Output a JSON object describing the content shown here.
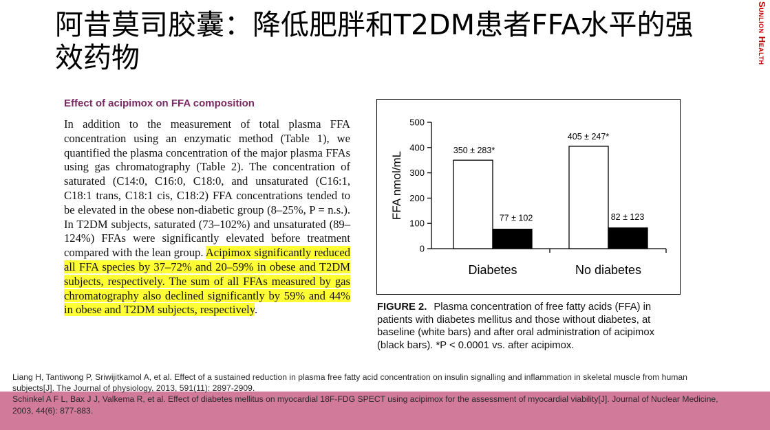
{
  "title": "阿昔莫司胶囊：降低肥胖和T2DM患者FFA水平的强效药物",
  "brand": "Sunlion Health",
  "excerpt": {
    "heading": "Effect of acipimox on FFA composition",
    "body_plain": "In addition to the measurement of total plasma FFA concentration using an enzymatic method (Table 1), we quantified the plasma concentration of the major plasma FFAs using gas chromatography (Table 2). The concentration of saturated (C14:0, C16:0, C18:0, and unsaturated (C16:1, C18:1 trans, C18:1 cis, C18:2) FFA concentrations tended to be elevated in the obese non-diabetic group (8–25%, P = n.s.). In T2DM subjects, saturated (73–102%) and unsaturated (89–124%) FFAs were significantly elevated before treatment compared with the lean group.",
    "body_highlight": "Acipimox significantly reduced all FFA species by 37–72% and 20–59% in obese and T2DM subjects, respectively. The sum of all FFAs measured by gas chromatography also declined significantly by 59% and 44% in obese and T2DM subjects, respectively",
    "body_end": "."
  },
  "chart_data": {
    "type": "bar",
    "categories": [
      "Diabetes",
      "No diabetes"
    ],
    "series": [
      {
        "values": [
          350,
          405
        ],
        "errors": [
          283,
          247
        ],
        "color": "#ffffff",
        "labels": [
          "350 ± 283*",
          "405 ± 247*"
        ]
      },
      {
        "values": [
          77,
          82
        ],
        "errors": [
          102,
          123
        ],
        "color": "#000000",
        "labels": [
          "77 ± 102",
          "82 ± 123"
        ]
      }
    ],
    "ylabel": "FFA nmol/mL",
    "ylim": [
      0,
      500
    ],
    "yticks": [
      0,
      100,
      200,
      300,
      400,
      500
    ],
    "grid": false
  },
  "caption": {
    "label": "FIGURE 2.",
    "text": "Plasma concentration of free fatty acids (FFA) in patients with diabetes mellitus and those without diabetes, at baseline (white bars) and after oral administration of acipimox (black bars). *P < 0.0001 vs. after acipimox."
  },
  "references": [
    "Liang H, Tantiwong P, Sriwijitkamol A, et al. Effect of a sustained reduction in plasma free fatty acid concentration on insulin signalling and inflammation in skeletal muscle from human subjects[J]. The Journal of physiology, 2013, 591(11): 2897-2909.",
    "Schinkel A F L, Bax J J, Valkema R, et al. Effect of diabetes mellitus on myocardial 18F-FDG SPECT using acipimox for the assessment of myocardial viability[J]. Journal of Nuclear Medicine, 2003, 44(6): 877-883."
  ],
  "colors": {
    "brand": "#c00000",
    "heading": "#7a2a63",
    "highlight": "#ffff33",
    "reference_band": "#d17a99"
  }
}
